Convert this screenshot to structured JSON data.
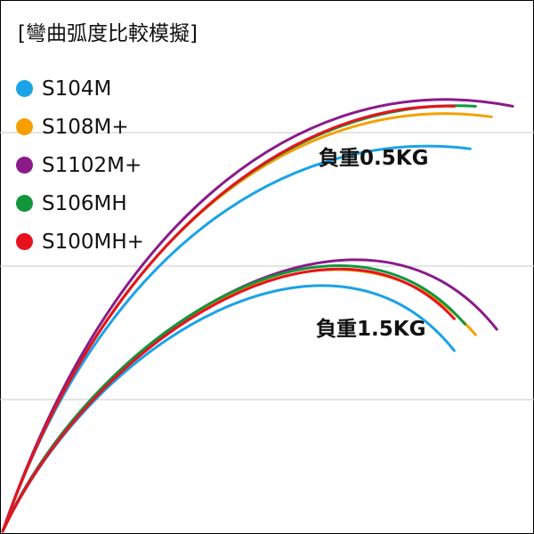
{
  "title": "[彎曲弧度比較模擬]",
  "legend": [
    {
      "name": "S104M",
      "color": "#1aa3e6"
    },
    {
      "name": "S108M+",
      "color": "#f5a000"
    },
    {
      "name": "S1102M+",
      "color": "#8b1a8b"
    },
    {
      "name": "S106MH",
      "color": "#12963c"
    },
    {
      "name": "S100MH+",
      "color": "#e8121e"
    }
  ],
  "annotations": {
    "load_05": "負重0.5KG",
    "load_15": "負重1.5KG"
  },
  "chart_data": {
    "type": "line",
    "title": "[彎曲弧度比較模擬]",
    "xlabel": "",
    "ylabel": "",
    "grid": "horizontal",
    "legend_position": "top-left",
    "annotations": [
      "負重0.5KG",
      "負重1.5KG"
    ],
    "series": [
      {
        "name": "S104M",
        "color": "#1aa3e6",
        "load": "負重0.5KG",
        "path": [
          [
            0,
            0
          ],
          [
            0.2,
            0.57
          ],
          [
            0.57,
            0.76
          ],
          [
            0.88,
            0.72
          ]
        ]
      },
      {
        "name": "S108M+",
        "color": "#f5a000",
        "load": "負重0.5KG",
        "path": [
          [
            0,
            0
          ],
          [
            0.2,
            0.57
          ],
          [
            0.56,
            0.83
          ],
          [
            0.92,
            0.78
          ]
        ]
      },
      {
        "name": "S1102M+",
        "color": "#8b1a8b",
        "load": "負重0.5KG",
        "path": [
          [
            0,
            0
          ],
          [
            0.2,
            0.58
          ],
          [
            0.56,
            0.88
          ],
          [
            0.96,
            0.8
          ]
        ]
      },
      {
        "name": "S106MH",
        "color": "#12963c",
        "load": "負重0.5KG",
        "path": [
          [
            0,
            0
          ],
          [
            0.2,
            0.57
          ],
          [
            0.56,
            0.82
          ],
          [
            0.89,
            0.8
          ]
        ]
      },
      {
        "name": "S100MH+",
        "color": "#e8121e",
        "load": "負重0.5KG",
        "path": [
          [
            0,
            0
          ],
          [
            0.2,
            0.57
          ],
          [
            0.56,
            0.81
          ],
          [
            0.85,
            0.8
          ]
        ]
      },
      {
        "name": "S104M",
        "color": "#1aa3e6",
        "load": "負重1.5KG",
        "path": [
          [
            0,
            0
          ],
          [
            0.17,
            0.36
          ],
          [
            0.62,
            0.63
          ],
          [
            0.85,
            0.34
          ]
        ]
      },
      {
        "name": "S108M+",
        "color": "#f5a000",
        "load": "負重1.5KG",
        "path": [
          [
            0,
            0
          ],
          [
            0.17,
            0.37
          ],
          [
            0.63,
            0.67
          ],
          [
            0.89,
            0.37
          ]
        ]
      },
      {
        "name": "S1102M+",
        "color": "#8b1a8b",
        "load": "負重1.5KG",
        "path": [
          [
            0,
            0
          ],
          [
            0.17,
            0.38
          ],
          [
            0.68,
            0.7
          ],
          [
            0.93,
            0.38
          ]
        ]
      },
      {
        "name": "S106MH",
        "color": "#12963c",
        "load": "負重1.5KG",
        "path": [
          [
            0,
            0
          ],
          [
            0.17,
            0.37
          ],
          [
            0.63,
            0.67
          ],
          [
            0.87,
            0.39
          ]
        ]
      },
      {
        "name": "S100MH+",
        "color": "#e8121e",
        "load": "負重1.5KG",
        "path": [
          [
            0,
            0
          ],
          [
            0.17,
            0.36
          ],
          [
            0.62,
            0.65
          ],
          [
            0.85,
            0.4
          ]
        ]
      }
    ]
  }
}
